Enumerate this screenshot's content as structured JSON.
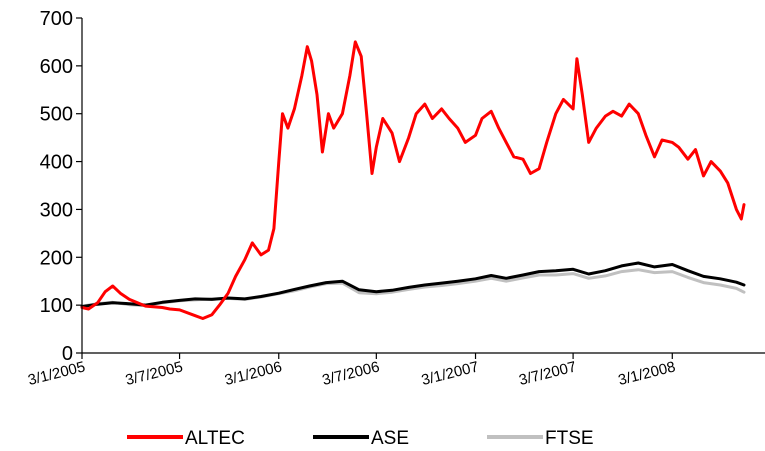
{
  "chart_data": {
    "type": "line",
    "title": "",
    "xlabel": "",
    "ylabel": "",
    "ylim": [
      0,
      700
    ],
    "yticks": [
      0,
      100,
      200,
      300,
      400,
      500,
      600,
      700
    ],
    "x_tick_labels": [
      "3/1/2005",
      "3/7/2005",
      "3/1/2006",
      "3/7/2006",
      "3/1/2007",
      "3/7/2007",
      "3/1/2008"
    ],
    "xlim": [
      "3/1/2005",
      "23/6/2008"
    ],
    "grid": false,
    "legend_position": "bottom",
    "series": [
      {
        "name": "ALTEC",
        "color": "#ff0000",
        "points": [
          [
            "3/1/2005",
            95
          ],
          [
            "15/1/2005",
            92
          ],
          [
            "1/2/2005",
            105
          ],
          [
            "15/2/2005",
            128
          ],
          [
            "1/3/2005",
            140
          ],
          [
            "15/3/2005",
            125
          ],
          [
            "1/4/2005",
            112
          ],
          [
            "1/5/2005",
            98
          ],
          [
            "1/6/2005",
            95
          ],
          [
            "15/6/2005",
            92
          ],
          [
            "3/7/2005",
            90
          ],
          [
            "1/8/2005",
            78
          ],
          [
            "15/8/2005",
            72
          ],
          [
            "1/9/2005",
            80
          ],
          [
            "15/9/2005",
            100
          ],
          [
            "1/10/2005",
            125
          ],
          [
            "15/10/2005",
            160
          ],
          [
            "1/11/2005",
            195
          ],
          [
            "15/11/2005",
            230
          ],
          [
            "1/12/2005",
            205
          ],
          [
            "15/12/2005",
            215
          ],
          [
            "25/12/2005",
            260
          ],
          [
            "3/1/2006",
            400
          ],
          [
            "10/1/2006",
            500
          ],
          [
            "20/1/2006",
            470
          ],
          [
            "1/2/2006",
            510
          ],
          [
            "15/2/2006",
            580
          ],
          [
            "25/2/2006",
            640
          ],
          [
            "5/3/2006",
            610
          ],
          [
            "15/3/2006",
            540
          ],
          [
            "25/3/2006",
            420
          ],
          [
            "5/4/2006",
            500
          ],
          [
            "15/4/2006",
            470
          ],
          [
            "1/5/2006",
            500
          ],
          [
            "15/5/2006",
            580
          ],
          [
            "25/5/2006",
            650
          ],
          [
            "5/6/2006",
            620
          ],
          [
            "15/6/2006",
            500
          ],
          [
            "25/6/2006",
            375
          ],
          [
            "3/7/2006",
            430
          ],
          [
            "15/7/2006",
            490
          ],
          [
            "1/8/2006",
            460
          ],
          [
            "15/8/2006",
            400
          ],
          [
            "1/9/2006",
            450
          ],
          [
            "15/9/2006",
            500
          ],
          [
            "1/10/2006",
            520
          ],
          [
            "15/10/2006",
            490
          ],
          [
            "1/11/2006",
            510
          ],
          [
            "15/11/2006",
            490
          ],
          [
            "1/12/2006",
            470
          ],
          [
            "15/12/2006",
            440
          ],
          [
            "3/1/2007",
            455
          ],
          [
            "15/1/2007",
            490
          ],
          [
            "1/2/2007",
            505
          ],
          [
            "15/2/2007",
            470
          ],
          [
            "1/3/2007",
            440
          ],
          [
            "15/3/2007",
            410
          ],
          [
            "1/4/2007",
            405
          ],
          [
            "15/4/2007",
            375
          ],
          [
            "1/5/2007",
            385
          ],
          [
            "15/5/2007",
            440
          ],
          [
            "1/6/2007",
            500
          ],
          [
            "15/6/2007",
            530
          ],
          [
            "3/7/2007",
            510
          ],
          [
            "10/7/2007",
            615
          ],
          [
            "20/7/2007",
            540
          ],
          [
            "1/8/2007",
            440
          ],
          [
            "15/8/2007",
            470
          ],
          [
            "1/9/2007",
            495
          ],
          [
            "15/9/2007",
            505
          ],
          [
            "1/10/2007",
            495
          ],
          [
            "15/10/2007",
            520
          ],
          [
            "1/11/2007",
            500
          ],
          [
            "15/11/2007",
            455
          ],
          [
            "1/12/2007",
            410
          ],
          [
            "15/12/2007",
            445
          ],
          [
            "3/1/2008",
            440
          ],
          [
            "15/1/2008",
            430
          ],
          [
            "1/2/2008",
            405
          ],
          [
            "15/2/2008",
            425
          ],
          [
            "1/3/2008",
            370
          ],
          [
            "15/3/2008",
            400
          ],
          [
            "1/4/2008",
            380
          ],
          [
            "15/4/2008",
            355
          ],
          [
            "1/5/2008",
            300
          ],
          [
            "10/5/2008",
            280
          ],
          [
            "15/5/2008",
            310
          ]
        ]
      },
      {
        "name": "ASE",
        "color": "#000000",
        "points": [
          [
            "3/1/2005",
            97
          ],
          [
            "1/2/2005",
            102
          ],
          [
            "1/3/2005",
            105
          ],
          [
            "1/4/2005",
            103
          ],
          [
            "1/5/2005",
            100
          ],
          [
            "1/6/2005",
            106
          ],
          [
            "3/7/2005",
            110
          ],
          [
            "1/8/2005",
            113
          ],
          [
            "1/9/2005",
            112
          ],
          [
            "1/10/2005",
            115
          ],
          [
            "1/11/2005",
            113
          ],
          [
            "1/12/2005",
            118
          ],
          [
            "3/1/2006",
            125
          ],
          [
            "1/2/2006",
            133
          ],
          [
            "1/3/2006",
            140
          ],
          [
            "1/4/2006",
            147
          ],
          [
            "1/5/2006",
            150
          ],
          [
            "1/6/2006",
            132
          ],
          [
            "3/7/2006",
            128
          ],
          [
            "1/8/2006",
            131
          ],
          [
            "1/9/2006",
            137
          ],
          [
            "1/10/2006",
            142
          ],
          [
            "1/11/2006",
            146
          ],
          [
            "1/12/2006",
            150
          ],
          [
            "3/1/2007",
            155
          ],
          [
            "1/2/2007",
            162
          ],
          [
            "1/3/2007",
            156
          ],
          [
            "1/4/2007",
            163
          ],
          [
            "1/5/2007",
            170
          ],
          [
            "1/6/2007",
            172
          ],
          [
            "3/7/2007",
            175
          ],
          [
            "1/8/2007",
            165
          ],
          [
            "1/9/2007",
            172
          ],
          [
            "1/10/2007",
            182
          ],
          [
            "1/11/2007",
            188
          ],
          [
            "1/12/2007",
            180
          ],
          [
            "3/1/2008",
            185
          ],
          [
            "1/2/2008",
            172
          ],
          [
            "1/3/2008",
            160
          ],
          [
            "1/4/2008",
            155
          ],
          [
            "1/5/2008",
            148
          ],
          [
            "15/5/2008",
            142
          ]
        ]
      },
      {
        "name": "FTSE",
        "color": "#c0c0c0",
        "points": [
          [
            "3/1/2005",
            98
          ],
          [
            "1/2/2005",
            103
          ],
          [
            "1/3/2005",
            106
          ],
          [
            "1/4/2005",
            101
          ],
          [
            "1/5/2005",
            99
          ],
          [
            "1/6/2005",
            105
          ],
          [
            "3/7/2005",
            109
          ],
          [
            "1/8/2005",
            111
          ],
          [
            "1/9/2005",
            113
          ],
          [
            "1/10/2005",
            114
          ],
          [
            "1/11/2005",
            112
          ],
          [
            "1/12/2005",
            117
          ],
          [
            "3/1/2006",
            124
          ],
          [
            "1/2/2006",
            130
          ],
          [
            "1/3/2006",
            138
          ],
          [
            "1/4/2006",
            145
          ],
          [
            "1/5/2006",
            146
          ],
          [
            "1/6/2006",
            126
          ],
          [
            "3/7/2006",
            124
          ],
          [
            "1/8/2006",
            127
          ],
          [
            "1/9/2006",
            133
          ],
          [
            "1/10/2006",
            138
          ],
          [
            "1/11/2006",
            141
          ],
          [
            "1/12/2006",
            145
          ],
          [
            "3/1/2007",
            150
          ],
          [
            "1/2/2007",
            156
          ],
          [
            "1/3/2007",
            150
          ],
          [
            "1/4/2007",
            157
          ],
          [
            "1/5/2007",
            163
          ],
          [
            "1/6/2007",
            163
          ],
          [
            "3/7/2007",
            166
          ],
          [
            "1/8/2007",
            156
          ],
          [
            "1/9/2007",
            161
          ],
          [
            "1/10/2007",
            170
          ],
          [
            "1/11/2007",
            174
          ],
          [
            "1/12/2007",
            168
          ],
          [
            "3/1/2008",
            170
          ],
          [
            "1/2/2008",
            158
          ],
          [
            "1/3/2008",
            147
          ],
          [
            "1/4/2008",
            142
          ],
          [
            "1/5/2008",
            135
          ],
          [
            "15/5/2008",
            127
          ]
        ]
      }
    ]
  }
}
